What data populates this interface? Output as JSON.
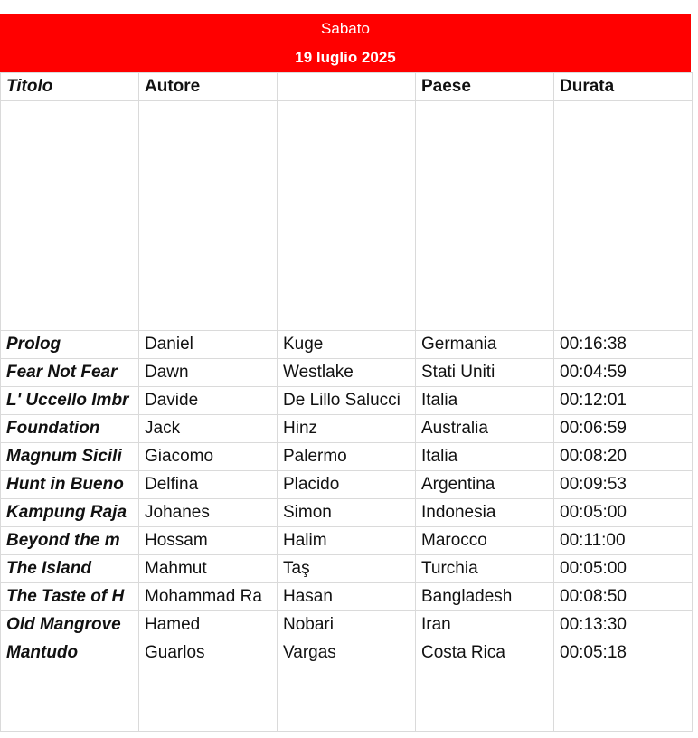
{
  "banner": {
    "day": "Sabato",
    "date": "19 luglio 2025",
    "color": "#ff0000"
  },
  "headers": {
    "title": "Titolo",
    "author": "Autore",
    "author_surname": "",
    "country": "Paese",
    "duration": "Durata"
  },
  "rows": [
    {
      "title": "Prolog",
      "first": "Daniel",
      "last": "Kuge",
      "country": "Germania",
      "duration": "00:16:38"
    },
    {
      "title": "Fear Not Fear",
      "first": "Dawn",
      "last": "Westlake",
      "country": "Stati Uniti",
      "duration": "00:04:59"
    },
    {
      "title": "L' Uccello Imbr",
      "first": "Davide",
      "last": "De Lillo Salucci",
      "country": "Italia",
      "duration": "00:12:01"
    },
    {
      "title": "Foundation",
      "first": "Jack",
      "last": "Hinz",
      "country": "Australia",
      "duration": "00:06:59"
    },
    {
      "title": "Magnum Sicili",
      "first": "Giacomo",
      "last": "Palermo",
      "country": "Italia",
      "duration": "00:08:20"
    },
    {
      "title": "Hunt in Bueno",
      "first": "Delfina",
      "last": "Placido",
      "country": "Argentina",
      "duration": "00:09:53"
    },
    {
      "title": "Kampung Raja",
      "first": "Johanes",
      "last": "Simon",
      "country": "Indonesia",
      "duration": "00:05:00"
    },
    {
      "title": "Beyond the m",
      "first": "Hossam",
      "last": "Halim",
      "country": "Marocco",
      "duration": "00:11:00"
    },
    {
      "title": "The Island",
      "first": "Mahmut",
      "last": "Taş",
      "country": "Turchia",
      "duration": "00:05:00"
    },
    {
      "title": "The Taste of H",
      "first": "Mohammad Ra",
      "last": "Hasan",
      "country": "Bangladesh",
      "duration": "00:08:50"
    },
    {
      "title": "Old Mangrove",
      "first": "Hamed",
      "last": "Nobari",
      "country": "Iran",
      "duration": "00:13:30"
    },
    {
      "title": "Mantudo",
      "first": "Guarlos",
      "last": "Vargas",
      "country": "Costa Rica",
      "duration": "00:05:18"
    }
  ]
}
